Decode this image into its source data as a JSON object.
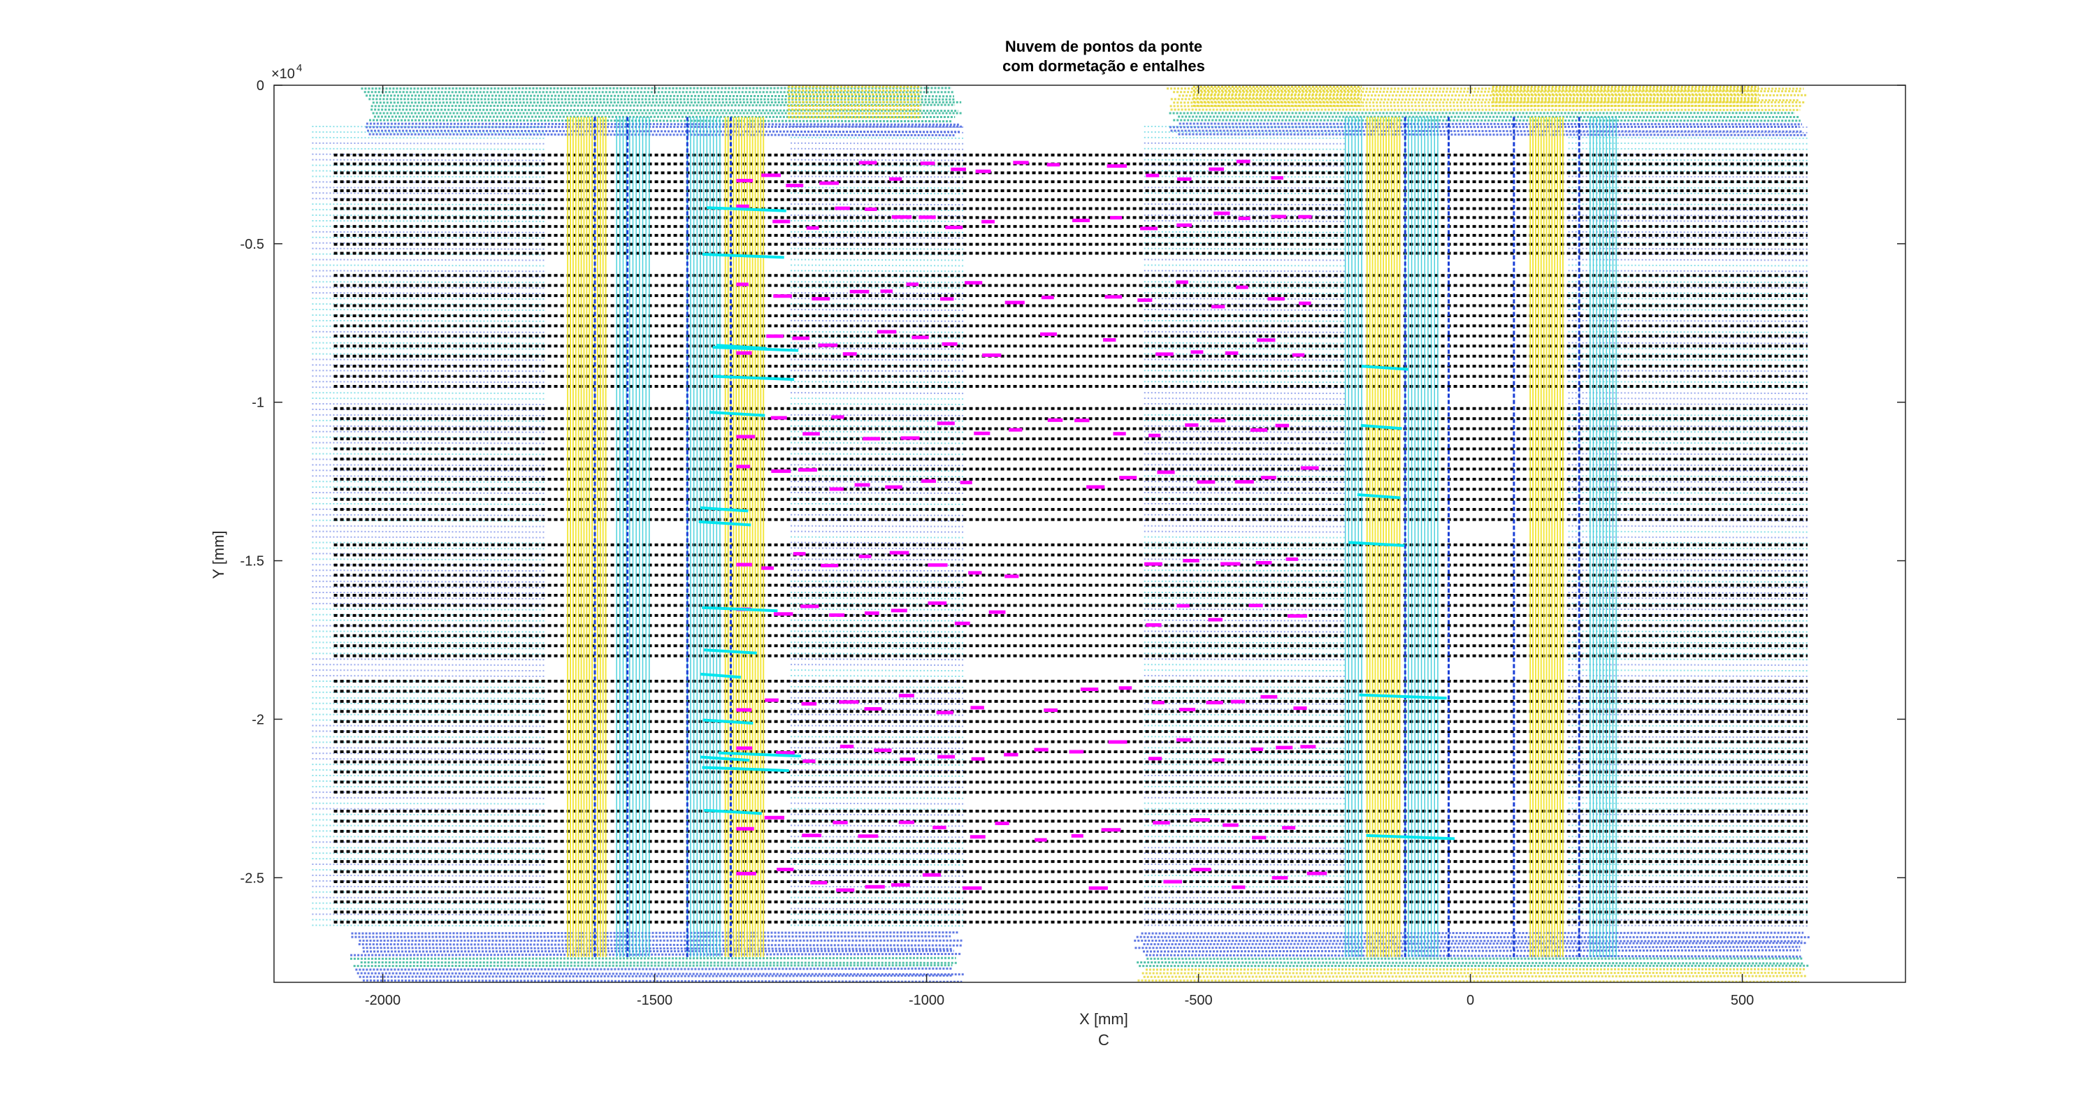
{
  "chart_data": {
    "type": "scatter",
    "title_lines": [
      "Nuvem de pontos da ponte",
      "com dormetação e entalhes"
    ],
    "xlabel": "X  [mm]",
    "xlabel_sub": "C",
    "ylabel": "Y  [mm]",
    "y_exponent": "×10",
    "y_exponent_power": "4",
    "xlim": [
      -2200,
      800
    ],
    "ylim": [
      -2.83,
      0
    ],
    "x_ticks": [
      {
        "value": -2000,
        "label": "-2000"
      },
      {
        "value": -1500,
        "label": "-1500"
      },
      {
        "value": -1000,
        "label": "-1000"
      },
      {
        "value": -500,
        "label": "-500"
      },
      {
        "value": 0,
        "label": "0"
      },
      {
        "value": 500,
        "label": "500"
      }
    ],
    "y_ticks": [
      {
        "value": 0,
        "label": "0"
      },
      {
        "value": -0.5,
        "label": "-0.5"
      },
      {
        "value": -1,
        "label": "-1"
      },
      {
        "value": -1.5,
        "label": "-1.5"
      },
      {
        "value": -2,
        "label": "-2"
      },
      {
        "value": -2.5,
        "label": "-2.5"
      }
    ],
    "grid": false,
    "legend": "none",
    "colors": {
      "sleepers": "#000000",
      "notches": "#ff00ff",
      "cyan_segments": "#00e5ee",
      "rails_yellow": "#f2e52a",
      "rails_cyan": "#2ec9d8",
      "rails_blue": "#1a3fd6",
      "cloud_blue": "#4662e0",
      "cloud_yellow": "#e8d93a",
      "cloud_green": "#34b79a"
    },
    "series": [
      {
        "description_key": "sleepers",
        "x_range": [
          -2090,
          620
        ],
        "sleeper_groups_y": [
          [
            -0.22,
            -0.53
          ],
          [
            -0.6,
            -0.95
          ],
          [
            -1.02,
            -1.37
          ],
          [
            -1.45,
            -1.8
          ],
          [
            -1.88,
            -2.23
          ],
          [
            -2.29,
            -2.64
          ]
        ]
      },
      {
        "description_key": "rails",
        "yellow_x": [
          [
            -1660,
            -1590
          ],
          [
            -1370,
            -1300
          ],
          [
            -190,
            -130
          ],
          [
            110,
            170
          ]
        ],
        "cyan_x": [
          [
            -1570,
            -1510
          ],
          [
            -1440,
            -1380
          ],
          [
            -230,
            -200
          ],
          [
            -120,
            -60
          ],
          [
            220,
            270
          ]
        ],
        "blue_x": [
          -1610,
          -1550,
          -1440,
          -1360,
          -120,
          -40,
          80,
          200
        ]
      },
      {
        "description_key": "end_clouds",
        "y_top": [
          0.0,
          -0.16
        ],
        "y_bottom": [
          -2.67,
          -2.83
        ],
        "x_left": [
          -2100,
          -930
        ],
        "x_right": [
          -600,
          600
        ]
      }
    ],
    "notch_seed": 7
  }
}
